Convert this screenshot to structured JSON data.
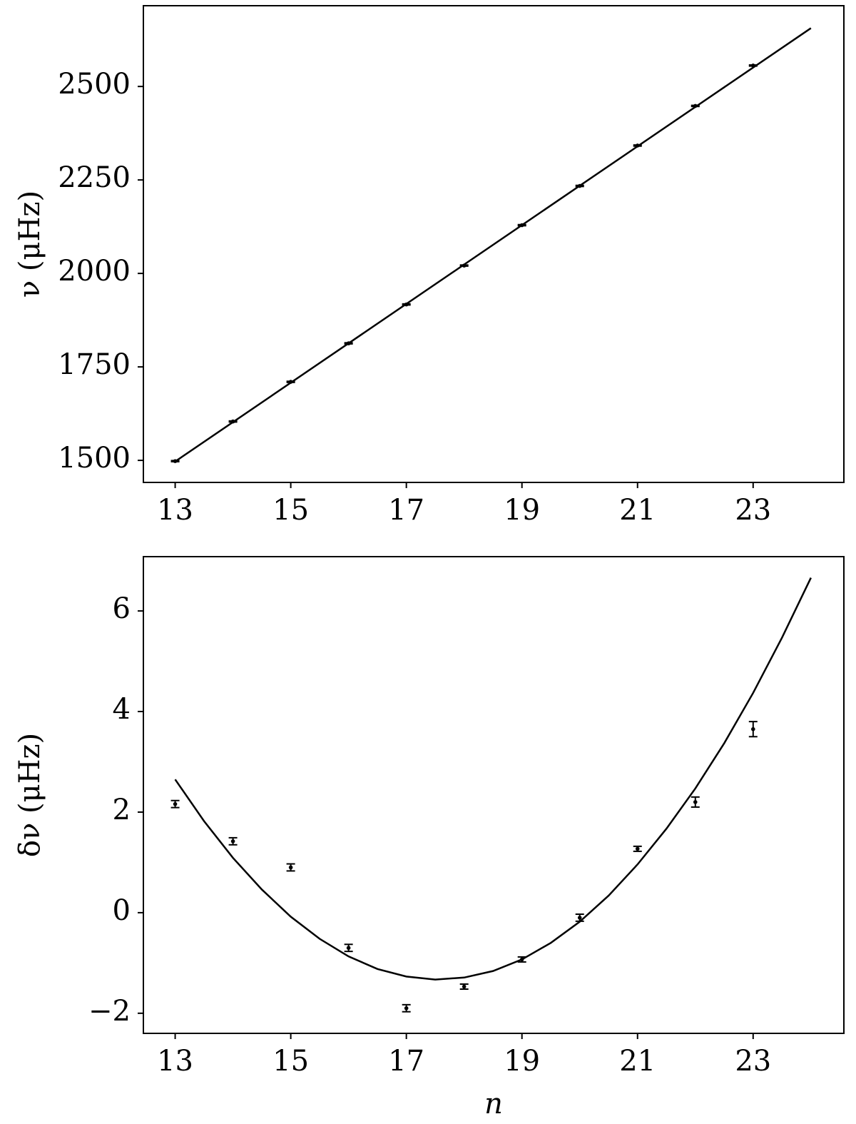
{
  "chart_data": [
    {
      "type": "line",
      "ylabel": "ν (μHz)",
      "xlim": [
        12.45,
        24.57
      ],
      "xticks": [
        13,
        15,
        17,
        19,
        21,
        23
      ],
      "ylim": [
        1441,
        2716
      ],
      "yticks": [
        1500,
        1750,
        2000,
        2250,
        2500
      ],
      "series": [
        {
          "color": "#000000",
          "x": [
            13,
            14,
            15,
            16,
            17,
            18,
            19,
            20,
            21,
            22,
            23
          ],
          "values": [
            1498,
            1604,
            1710,
            1813,
            1917,
            2021,
            2129,
            2234,
            2342,
            2448,
            2556
          ],
          "errors": [
            1.5,
            1.5,
            1.5,
            1.5,
            1.5,
            1.5,
            1.5,
            1.5,
            1.5,
            1.5,
            1.5
          ]
        },
        {
          "color": "#000000",
          "x": [
            13,
            24
          ],
          "values": [
            1497,
            2656
          ]
        }
      ]
    },
    {
      "type": "line",
      "ylabel": "δν (μHz)",
      "xlabel": "n",
      "xlim": [
        12.45,
        24.57
      ],
      "xticks": [
        13,
        15,
        17,
        19,
        21,
        23
      ],
      "ylim": [
        -2.4,
        7.08
      ],
      "yticks": [
        {
          "value": -2,
          "label": "−2"
        },
        0,
        2,
        4,
        6
      ],
      "series": [
        {
          "color": "#000000",
          "x": [
            13,
            14,
            15,
            16,
            17,
            18,
            19,
            20,
            21,
            22,
            23
          ],
          "values": [
            2.16,
            1.42,
            0.9,
            -0.7,
            -1.9,
            -1.47,
            -0.93,
            -0.1,
            1.27,
            2.2,
            3.65
          ],
          "errors": [
            0.07,
            0.07,
            0.07,
            0.07,
            0.07,
            0.05,
            0.05,
            0.07,
            0.05,
            0.1,
            0.15
          ]
        },
        {
          "color": "#000000",
          "x": [
            13,
            13.5,
            14,
            14.5,
            15,
            15.5,
            16,
            16.5,
            17,
            17.5,
            18,
            18.5,
            19,
            19.5,
            20,
            20.5,
            21,
            21.5,
            22,
            22.5,
            23,
            23.5,
            24
          ],
          "values": [
            2.65,
            1.82,
            1.09,
            0.46,
            -0.08,
            -0.52,
            -0.87,
            -1.12,
            -1.27,
            -1.33,
            -1.29,
            -1.16,
            -0.93,
            -0.6,
            -0.18,
            0.34,
            0.96,
            1.67,
            2.47,
            3.37,
            4.37,
            5.47,
            6.66
          ]
        }
      ]
    }
  ]
}
